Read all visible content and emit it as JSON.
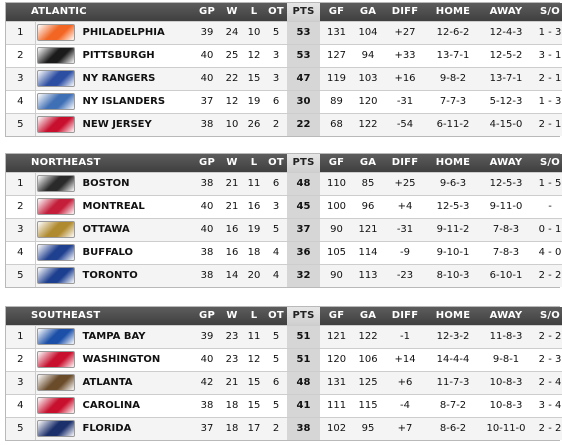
{
  "columns": {
    "gp": "GP",
    "w": "W",
    "l": "L",
    "ot": "OT",
    "pts": "PTS",
    "gf": "GF",
    "ga": "GA",
    "diff": "DIFF",
    "home": "HOME",
    "away": "AWAY",
    "so": "S/O"
  },
  "divisions": [
    {
      "name": "ATLANTIC",
      "rows": [
        {
          "rank": "1",
          "team": "PHILADELPHIA",
          "logo": "flyers-logo",
          "logo_color": "#f26522",
          "gp": "39",
          "w": "24",
          "l": "10",
          "ot": "5",
          "pts": "53",
          "gf": "131",
          "ga": "104",
          "diff": "+27",
          "home": "12-6-2",
          "away": "12-4-3",
          "so": "1 - 3"
        },
        {
          "rank": "2",
          "team": "PITTSBURGH",
          "logo": "penguins-logo",
          "logo_color": "#1b1b1b",
          "gp": "40",
          "w": "25",
          "l": "12",
          "ot": "3",
          "pts": "53",
          "gf": "127",
          "ga": "94",
          "diff": "+33",
          "home": "13-7-1",
          "away": "12-5-2",
          "so": "3 - 1"
        },
        {
          "rank": "3",
          "team": "NY RANGERS",
          "logo": "rangers-logo",
          "logo_color": "#2b4ea2",
          "gp": "40",
          "w": "22",
          "l": "15",
          "ot": "3",
          "pts": "47",
          "gf": "119",
          "ga": "103",
          "diff": "+16",
          "home": "9-8-2",
          "away": "13-7-1",
          "so": "2 - 1"
        },
        {
          "rank": "4",
          "team": "NY ISLANDERS",
          "logo": "islanders-logo",
          "logo_color": "#3f6fb5",
          "gp": "37",
          "w": "12",
          "l": "19",
          "ot": "6",
          "pts": "30",
          "gf": "89",
          "ga": "120",
          "diff": "-31",
          "home": "7-7-3",
          "away": "5-12-3",
          "so": "1 - 3"
        },
        {
          "rank": "5",
          "team": "NEW JERSEY",
          "logo": "devils-logo",
          "logo_color": "#c8102e",
          "gp": "38",
          "w": "10",
          "l": "26",
          "ot": "2",
          "pts": "22",
          "gf": "68",
          "ga": "122",
          "diff": "-54",
          "home": "6-11-2",
          "away": "4-15-0",
          "so": "2 - 1"
        }
      ]
    },
    {
      "name": "NORTHEAST",
      "rows": [
        {
          "rank": "1",
          "team": "BOSTON",
          "logo": "bruins-logo",
          "logo_color": "#2a2a2a",
          "gp": "38",
          "w": "21",
          "l": "11",
          "ot": "6",
          "pts": "48",
          "gf": "110",
          "ga": "85",
          "diff": "+25",
          "home": "9-6-3",
          "away": "12-5-3",
          "so": "1 - 5"
        },
        {
          "rank": "2",
          "team": "MONTREAL",
          "logo": "canadiens-logo",
          "logo_color": "#c41e3a",
          "gp": "40",
          "w": "21",
          "l": "16",
          "ot": "3",
          "pts": "45",
          "gf": "100",
          "ga": "96",
          "diff": "+4",
          "home": "12-5-3",
          "away": "9-11-0",
          "so": "-"
        },
        {
          "rank": "3",
          "team": "OTTAWA",
          "logo": "senators-logo",
          "logo_color": "#b08a2e",
          "gp": "40",
          "w": "16",
          "l": "19",
          "ot": "5",
          "pts": "37",
          "gf": "90",
          "ga": "121",
          "diff": "-31",
          "home": "9-11-2",
          "away": "7-8-3",
          "so": "0 - 1"
        },
        {
          "rank": "4",
          "team": "BUFFALO",
          "logo": "sabres-logo",
          "logo_color": "#1f3f8f",
          "gp": "38",
          "w": "16",
          "l": "18",
          "ot": "4",
          "pts": "36",
          "gf": "105",
          "ga": "114",
          "diff": "-9",
          "home": "9-10-1",
          "away": "7-8-3",
          "so": "4 - 0"
        },
        {
          "rank": "5",
          "team": "TORONTO",
          "logo": "mapleleafs-logo",
          "logo_color": "#1d3f8f",
          "gp": "38",
          "w": "14",
          "l": "20",
          "ot": "4",
          "pts": "32",
          "gf": "90",
          "ga": "113",
          "diff": "-23",
          "home": "8-10-3",
          "away": "6-10-1",
          "so": "2 - 2"
        }
      ]
    },
    {
      "name": "SOUTHEAST",
      "rows": [
        {
          "rank": "1",
          "team": "TAMPA BAY",
          "logo": "lightning-logo",
          "logo_color": "#1b4fa8",
          "gp": "39",
          "w": "23",
          "l": "11",
          "ot": "5",
          "pts": "51",
          "gf": "121",
          "ga": "122",
          "diff": "-1",
          "home": "12-3-2",
          "away": "11-8-3",
          "so": "2 - 2"
        },
        {
          "rank": "2",
          "team": "WASHINGTON",
          "logo": "capitals-logo",
          "logo_color": "#c8102e",
          "gp": "40",
          "w": "23",
          "l": "12",
          "ot": "5",
          "pts": "51",
          "gf": "120",
          "ga": "106",
          "diff": "+14",
          "home": "14-4-4",
          "away": "9-8-1",
          "so": "2 - 3"
        },
        {
          "rank": "3",
          "team": "ATLANTA",
          "logo": "thrashers-logo",
          "logo_color": "#6a4b2a",
          "gp": "42",
          "w": "21",
          "l": "15",
          "ot": "6",
          "pts": "48",
          "gf": "131",
          "ga": "125",
          "diff": "+6",
          "home": "11-7-3",
          "away": "10-8-3",
          "so": "2 - 4"
        },
        {
          "rank": "4",
          "team": "CAROLINA",
          "logo": "hurricanes-logo",
          "logo_color": "#c8102e",
          "gp": "38",
          "w": "18",
          "l": "15",
          "ot": "5",
          "pts": "41",
          "gf": "111",
          "ga": "115",
          "diff": "-4",
          "home": "8-7-2",
          "away": "10-8-3",
          "so": "3 - 4"
        },
        {
          "rank": "5",
          "team": "FLORIDA",
          "logo": "panthers-logo",
          "logo_color": "#1b2f6b",
          "gp": "37",
          "w": "18",
          "l": "17",
          "ot": "2",
          "pts": "38",
          "gf": "102",
          "ga": "95",
          "diff": "+7",
          "home": "8-6-2",
          "away": "10-11-0",
          "so": "2 - 2"
        }
      ]
    }
  ]
}
